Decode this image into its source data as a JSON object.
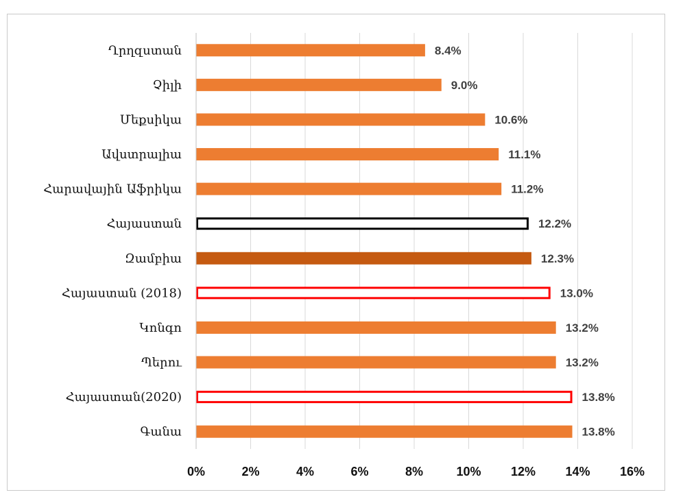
{
  "chart_data": {
    "type": "bar",
    "orientation": "horizontal",
    "title": "",
    "xlabel": "",
    "ylabel": "",
    "xlim": [
      0,
      16
    ],
    "x_ticks": [
      "0%",
      "2%",
      "4%",
      "6%",
      "8%",
      "10%",
      "12%",
      "14%",
      "16%"
    ],
    "grid": true,
    "legend": "none",
    "categories": [
      "Ղրղզստան",
      "Չիլի",
      "Մեքսիկա",
      "Ավստրալիա",
      "Հարավային Աֆրիկա",
      "Հայաստան",
      "Զամբիա",
      "Հայաստան (2018)",
      "Կոնգո",
      "Պերու",
      "Հայաստան(2020)",
      "Գանա"
    ],
    "values": [
      8.4,
      9.0,
      10.6,
      11.1,
      11.2,
      12.2,
      12.3,
      13.0,
      13.2,
      13.2,
      13.8,
      13.8
    ],
    "data_labels": [
      "8.4%",
      "9.0%",
      "10.6%",
      "11.1%",
      "11.2%",
      "12.2%",
      "12.3%",
      "13.0%",
      "13.2%",
      "13.2%",
      "13.8%",
      "13.8%"
    ],
    "bar_styles": [
      "filled",
      "filled",
      "filled",
      "filled",
      "filled",
      "outline",
      "filled-dark",
      "outline-red",
      "filled",
      "filled",
      "outline-red",
      "filled"
    ],
    "colors": {
      "bar": "#ED7D31",
      "bar_dark": "#C55A11",
      "outline_black": "#000000",
      "outline_red": "#FF0000",
      "grid": "#D9D9D9"
    }
  }
}
